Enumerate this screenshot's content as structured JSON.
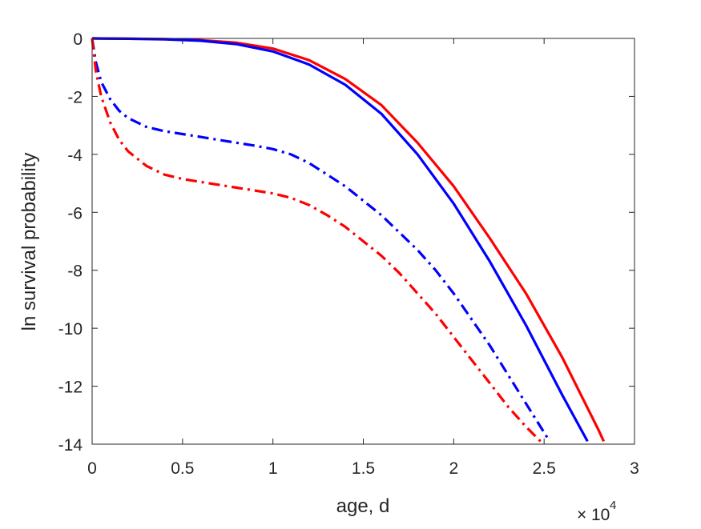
{
  "chart_data": {
    "type": "line",
    "title": "",
    "xlabel": "age, d",
    "ylabel": "ln survival probability",
    "x_scale_label": "10^4",
    "xlim": [
      0,
      30000
    ],
    "ylim": [
      -14,
      0
    ],
    "x_ticks": [
      0,
      5000,
      10000,
      15000,
      20000,
      25000,
      30000
    ],
    "x_tick_labels": [
      "0",
      "0.5",
      "1",
      "1.5",
      "2",
      "2.5",
      "3"
    ],
    "y_ticks": [
      0,
      -2,
      -4,
      -6,
      -8,
      -10,
      -12,
      -14
    ],
    "y_tick_labels": [
      "0",
      "-2",
      "-4",
      "-6",
      "-8",
      "-10",
      "-12",
      "-14"
    ],
    "grid": false,
    "legend": "none",
    "series": [
      {
        "color": "#ff0000",
        "dash": "solid",
        "x": [
          0,
          2000,
          4000,
          6000,
          8000,
          10000,
          12000,
          14000,
          16000,
          18000,
          20000,
          22000,
          24000,
          26000,
          28000,
          28300
        ],
        "y": [
          0,
          -0.01,
          -0.02,
          -0.06,
          -0.15,
          -0.35,
          -0.75,
          -1.4,
          -2.3,
          -3.6,
          -5.1,
          -6.9,
          -8.8,
          -11.0,
          -13.5,
          -13.9
        ]
      },
      {
        "color": "#0000ff",
        "dash": "solid",
        "x": [
          0,
          2000,
          4000,
          6000,
          8000,
          10000,
          12000,
          14000,
          16000,
          18000,
          20000,
          22000,
          24000,
          26000,
          27400
        ],
        "y": [
          0,
          -0.01,
          -0.03,
          -0.08,
          -0.2,
          -0.45,
          -0.9,
          -1.6,
          -2.6,
          -4.0,
          -5.7,
          -7.7,
          -9.9,
          -12.3,
          -13.9
        ]
      },
      {
        "color": "#0000ff",
        "dash": "dashdot",
        "x": [
          0,
          200,
          500,
          1000,
          1500,
          2000,
          3000,
          4000,
          5000,
          6000,
          7000,
          8000,
          9000,
          10000,
          11000,
          12000,
          13000,
          14000,
          15000,
          16000,
          17000,
          18000,
          19000,
          20000,
          21000,
          22000,
          23000,
          24000,
          25000,
          25300
        ],
        "y": [
          0,
          -0.8,
          -1.5,
          -2.1,
          -2.5,
          -2.75,
          -3.05,
          -3.2,
          -3.3,
          -3.4,
          -3.5,
          -3.6,
          -3.7,
          -3.82,
          -4.0,
          -4.3,
          -4.7,
          -5.1,
          -5.6,
          -6.1,
          -6.7,
          -7.3,
          -8.0,
          -8.8,
          -9.7,
          -10.6,
          -11.6,
          -12.6,
          -13.6,
          -13.9
        ]
      },
      {
        "color": "#ff0000",
        "dash": "dashdot",
        "x": [
          0,
          200,
          500,
          1000,
          1500,
          2000,
          3000,
          4000,
          5000,
          6000,
          7000,
          8000,
          9000,
          10000,
          11000,
          12000,
          13000,
          14000,
          15000,
          16000,
          17000,
          18000,
          19000,
          20000,
          21000,
          22000,
          23000,
          24000,
          24800
        ],
        "y": [
          0,
          -1.1,
          -2.0,
          -2.9,
          -3.5,
          -3.9,
          -4.4,
          -4.7,
          -4.85,
          -4.95,
          -5.05,
          -5.15,
          -5.25,
          -5.35,
          -5.5,
          -5.75,
          -6.1,
          -6.5,
          -7.0,
          -7.5,
          -8.1,
          -8.8,
          -9.5,
          -10.3,
          -11.1,
          -11.9,
          -12.7,
          -13.4,
          -13.9
        ]
      }
    ]
  }
}
